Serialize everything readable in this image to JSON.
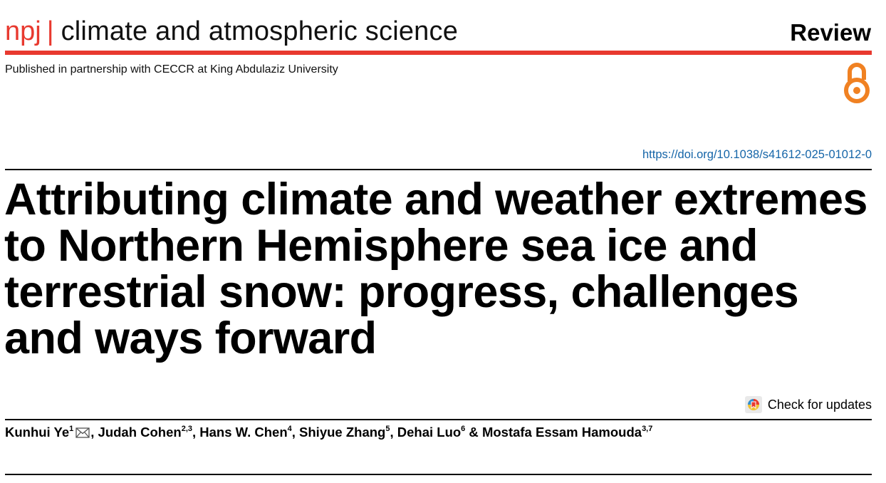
{
  "journal": {
    "brand": "npj",
    "separator": "|",
    "name": "climate and atmospheric science",
    "article_type": "Review",
    "partnership": "Published in partnership with CECCR at King Abdulaziz University",
    "brand_color": "#e8392f",
    "open_access_icon": "open-access-lock-icon"
  },
  "doi": "https://doi.org/10.1038/s41612-025-01012-0",
  "title": "Attributing climate and weather extremes to Northern Hemisphere sea ice and terrestrial snow: progress, challenges and ways forward",
  "check_updates": {
    "label": "Check for updates",
    "icon": "check-for-updates-icon"
  },
  "authors": [
    {
      "name": "Kunhui Ye",
      "aff": "1",
      "corresponding": true
    },
    {
      "name": "Judah Cohen",
      "aff": "2,3"
    },
    {
      "name": "Hans W. Chen",
      "aff": "4"
    },
    {
      "name": "Shiyue Zhang",
      "aff": "5"
    },
    {
      "name": "Dehai Luo",
      "aff": "6"
    },
    {
      "name": "Mostafa Essam Hamouda",
      "aff": "3,7"
    }
  ],
  "author_separators": [
    ", ",
    ", ",
    ", ",
    ", ",
    " & "
  ]
}
